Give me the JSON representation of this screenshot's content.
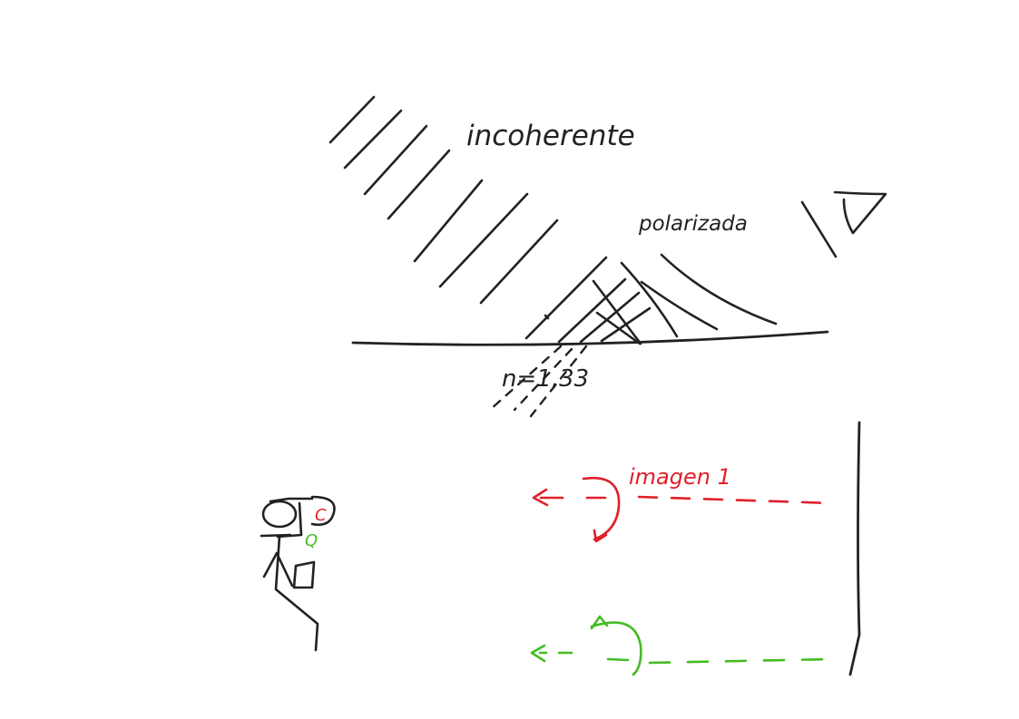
{
  "labels": {
    "incoherent": "incoherente",
    "polarized": "polarizada",
    "refractive_index": "n=1,33",
    "image_label": "imagen 1",
    "camera_mark_red": "C",
    "camera_mark_green": "Q"
  },
  "colors": {
    "ink": "#222222",
    "red": "#e0202a",
    "green": "#44bb22",
    "paper": "#ffffff"
  },
  "icons": {
    "eye": "eye-icon",
    "person": "stick-figure-with-camera"
  }
}
